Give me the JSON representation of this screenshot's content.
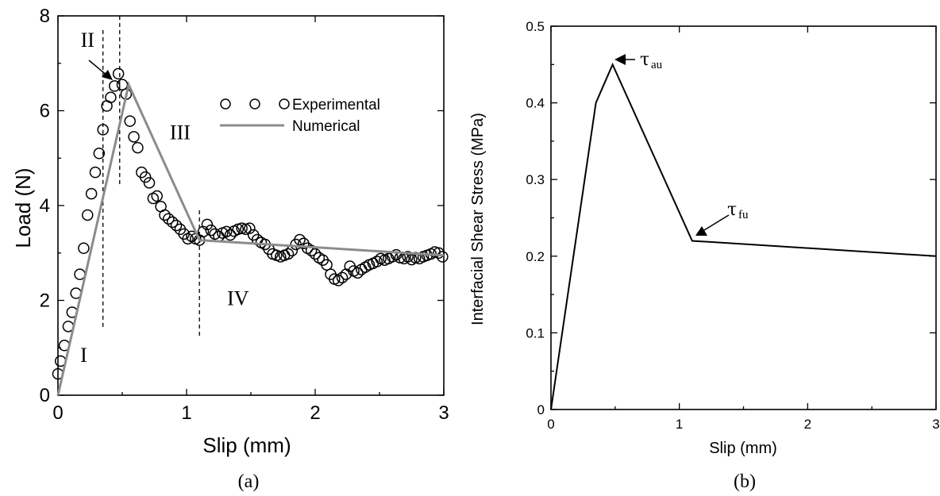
{
  "chart_data": [
    {
      "type": "scatter",
      "panel_label": "(a)",
      "xlabel": "Slip (mm)",
      "ylabel": "Load (N)",
      "xlim": [
        0,
        3
      ],
      "ylim": [
        0,
        8
      ],
      "xticks": [
        0,
        1,
        2,
        3
      ],
      "yticks": [
        0,
        2,
        4,
        6,
        8
      ],
      "legend_position": "upper-right",
      "series": [
        {
          "name": "Experimental",
          "marker": "open-circle",
          "color": "#000000",
          "x": [
            0.0,
            0.02,
            0.05,
            0.08,
            0.11,
            0.14,
            0.17,
            0.2,
            0.23,
            0.26,
            0.29,
            0.32,
            0.35,
            0.38,
            0.41,
            0.44,
            0.47,
            0.5,
            0.53,
            0.56,
            0.59,
            0.62,
            0.65,
            0.68,
            0.71,
            0.74,
            0.77,
            0.8,
            0.83,
            0.86,
            0.89,
            0.92,
            0.95,
            0.98,
            1.01,
            1.04,
            1.07,
            1.1,
            1.13,
            1.16,
            1.19,
            1.22,
            1.25,
            1.28,
            1.31,
            1.34,
            1.37,
            1.4,
            1.43,
            1.46,
            1.49,
            1.52,
            1.55,
            1.58,
            1.61,
            1.64,
            1.67,
            1.7,
            1.73,
            1.76,
            1.79,
            1.82,
            1.85,
            1.88,
            1.91,
            1.94,
            1.97,
            2.0,
            2.03,
            2.06,
            2.09,
            2.12,
            2.15,
            2.18,
            2.21,
            2.24,
            2.27,
            2.3,
            2.33,
            2.36,
            2.39,
            2.42,
            2.45,
            2.48,
            2.51,
            2.54,
            2.57,
            2.6,
            2.63,
            2.66,
            2.69,
            2.72,
            2.75,
            2.78,
            2.81,
            2.84,
            2.87,
            2.9,
            2.93,
            2.96,
            2.99
          ],
          "y": [
            0.45,
            0.72,
            1.05,
            1.45,
            1.75,
            2.15,
            2.55,
            3.1,
            3.8,
            4.25,
            4.7,
            5.1,
            5.6,
            6.1,
            6.28,
            6.52,
            6.78,
            6.55,
            6.35,
            5.78,
            5.45,
            5.22,
            4.7,
            4.6,
            4.48,
            4.15,
            4.2,
            3.98,
            3.8,
            3.72,
            3.65,
            3.58,
            3.5,
            3.4,
            3.3,
            3.35,
            3.3,
            3.27,
            3.45,
            3.6,
            3.48,
            3.4,
            3.35,
            3.42,
            3.45,
            3.38,
            3.46,
            3.5,
            3.52,
            3.5,
            3.52,
            3.38,
            3.28,
            3.22,
            3.18,
            3.08,
            2.98,
            2.95,
            2.92,
            2.95,
            2.98,
            3.05,
            3.18,
            3.28,
            3.2,
            3.1,
            3.05,
            2.98,
            2.9,
            2.85,
            2.75,
            2.55,
            2.45,
            2.42,
            2.48,
            2.55,
            2.72,
            2.62,
            2.58,
            2.65,
            2.7,
            2.75,
            2.78,
            2.82,
            2.88,
            2.85,
            2.88,
            2.92,
            2.96,
            2.9,
            2.88,
            2.92,
            2.86,
            2.9,
            2.88,
            2.92,
            2.95,
            2.98,
            3.02,
            3.0,
            2.92
          ]
        },
        {
          "name": "Numerical",
          "style": "line",
          "color": "#8c8c8c",
          "x": [
            0,
            0.55,
            1.1,
            3.0
          ],
          "y": [
            0,
            6.55,
            3.27,
            2.95
          ]
        }
      ],
      "dividers_x": [
        0.35,
        0.48,
        1.1
      ],
      "annotations": [
        {
          "text": "I",
          "x": 0.2,
          "y": 0.7
        },
        {
          "text": "II",
          "x": 0.23,
          "y": 7.35
        },
        {
          "text": "III",
          "x": 0.95,
          "y": 5.4
        },
        {
          "text": "IV",
          "x": 1.4,
          "y": 1.9
        }
      ]
    },
    {
      "type": "line",
      "panel_label": "(b)",
      "xlabel": "Slip (mm)",
      "ylabel": "Interfacial Shear Stress (MPa)",
      "xlim": [
        0,
        3
      ],
      "ylim": [
        0,
        0.5
      ],
      "xticks": [
        0,
        1,
        2,
        3
      ],
      "yticks": [
        0,
        0.1,
        0.2,
        0.3,
        0.4,
        0.5
      ],
      "series": [
        {
          "color": "#000000",
          "x": [
            0,
            0.35,
            0.48,
            1.1,
            3.0
          ],
          "y": [
            0,
            0.4,
            0.45,
            0.22,
            0.2
          ]
        }
      ],
      "annotations": [
        {
          "symbol": "τ",
          "subscript": "au",
          "point": [
            0.48,
            0.45
          ]
        },
        {
          "symbol": "τ",
          "subscript": "fu",
          "point": [
            1.1,
            0.22
          ]
        }
      ]
    }
  ]
}
